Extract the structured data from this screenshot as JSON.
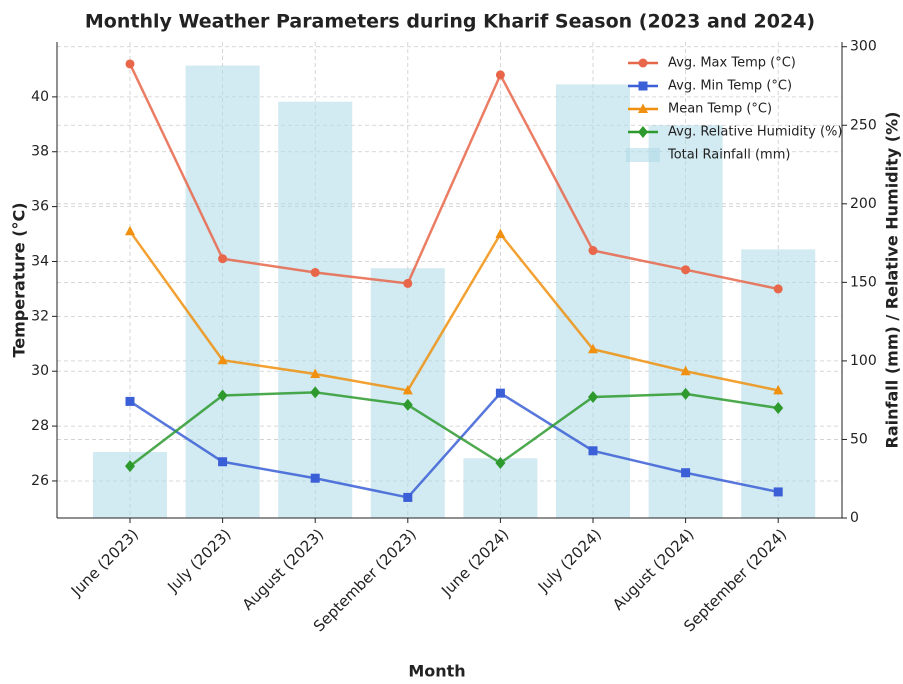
{
  "chart_data": {
    "type": "line",
    "title": "Monthly Weather Parameters during Kharif Season (2023 and 2024)",
    "xlabel": "Month",
    "ylabel": "Temperature (°C)",
    "y2label": "Rainfall (mm) / Relative Humidity (%)",
    "categories": [
      "June (2023)",
      "July (2023)",
      "August (2023)",
      "September (2023)",
      "June (2024)",
      "July (2024)",
      "August (2024)",
      "September (2024)"
    ],
    "series": [
      {
        "name": "Avg. Max Temp (°C)",
        "color": "#e8664a",
        "marker": "circle",
        "values": [
          41.2,
          34.1,
          33.6,
          33.2,
          40.8,
          34.4,
          33.7,
          33.0
        ]
      },
      {
        "name": "Avg. Min Temp (°C)",
        "color": "#3b5fd6",
        "marker": "square",
        "values": [
          28.9,
          26.7,
          26.1,
          25.4,
          29.2,
          27.1,
          26.3,
          25.6
        ]
      },
      {
        "name": "Mean Temp (°C)",
        "color": "#f0900e",
        "marker": "triangle",
        "values": [
          35.1,
          30.4,
          29.9,
          29.3,
          35.0,
          30.8,
          30.0,
          29.3
        ]
      },
      {
        "name": "Avg. Relative Humidity (%)",
        "color": "#2e9a2e",
        "marker": "diamond",
        "axis": "y2",
        "values": [
          33,
          78,
          80,
          72,
          35,
          77,
          79,
          70
        ]
      },
      {
        "name": "Total Rainfall (mm)",
        "color": "#add8e6",
        "type": "bar",
        "axis": "y2",
        "values": [
          42,
          288,
          265,
          159,
          38,
          276,
          250,
          171
        ]
      }
    ],
    "ylim": [
      24.65,
      42.0
    ],
    "yticks": [
      26,
      28,
      30,
      32,
      34,
      36,
      38,
      40
    ],
    "y2lim": [
      0,
      303
    ],
    "y2ticks": [
      0,
      50,
      100,
      150,
      200,
      250,
      300
    ],
    "grid": true,
    "legend": "upper right"
  }
}
